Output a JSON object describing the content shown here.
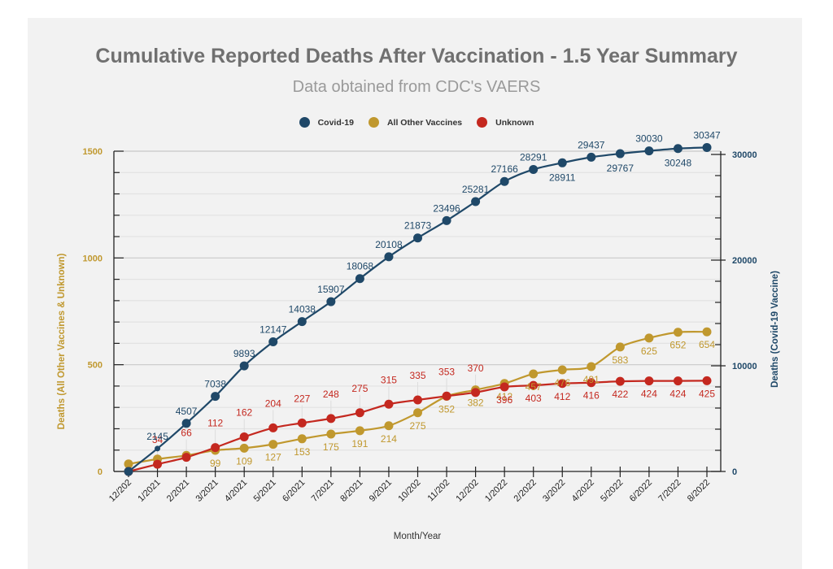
{
  "chart_data": {
    "type": "line",
    "title": "Cumulative Reported Deaths After Vaccination - 1.5 Year Summary",
    "subtitle": "Data obtained from CDC's VAERS",
    "xlabel": "Month/Year",
    "ylabel_left": "Deaths (All Other Vaccines & Unknown)",
    "ylabel_right": "Deaths (Covid-19 Vaccine)",
    "legend_position": "top-center",
    "grid": true,
    "categories": [
      "12/202",
      "1/2021",
      "2/2021",
      "3/2021",
      "4/2021",
      "5/2021",
      "6/2021",
      "7/2021",
      "8/2021",
      "9/2021",
      "10/202",
      "11/202",
      "12/202",
      "1/2022",
      "2/2022",
      "3/2022",
      "4/2022",
      "5/2022",
      "6/2022",
      "7/2022",
      "8/2022"
    ],
    "y_left": {
      "range": [
        0,
        1500
      ],
      "ticks": [
        0,
        500,
        1000,
        1500
      ],
      "minor_step": 100
    },
    "y_right": {
      "range": [
        0,
        30000
      ],
      "ticks": [
        0,
        10000,
        20000,
        30000
      ],
      "minor_step": 2000
    },
    "series": [
      {
        "name": "Covid-19",
        "color": "#1f4868",
        "axis": "right",
        "values": [
          0,
          2145,
          4507,
          7038,
          9893,
          12147,
          14038,
          15907,
          18068,
          20108,
          21873,
          23496,
          25281,
          27166,
          28291,
          28911,
          29437,
          29767,
          30030,
          30248,
          30347
        ],
        "labels": [
          "",
          "2145",
          "4507",
          "7038",
          "9893",
          "12147",
          "14038",
          "15907",
          "18068",
          "20108",
          "21873",
          "23496",
          "25281",
          "27166",
          "28291",
          "28911",
          "29437",
          "29767",
          "30030",
          "30248",
          "30347"
        ]
      },
      {
        "name": "All Other Vaccines",
        "color": "#c0982e",
        "axis": "left",
        "values": [
          35,
          58,
          75,
          99,
          109,
          127,
          153,
          175,
          191,
          214,
          275,
          352,
          382,
          412,
          457,
          476,
          491,
          583,
          625,
          652,
          654
        ],
        "labels": [
          "",
          "",
          "",
          "99",
          "109",
          "127",
          "153",
          "175",
          "191",
          "214",
          "275",
          "352",
          "382",
          "412",
          "457",
          "476",
          "491",
          "583",
          "625",
          "652",
          "654"
        ]
      },
      {
        "name": "Unknown",
        "color": "#c4281f",
        "axis": "left",
        "values": [
          0,
          34,
          66,
          112,
          162,
          204,
          227,
          248,
          275,
          315,
          335,
          353,
          370,
          396,
          403,
          412,
          416,
          422,
          424,
          424,
          425
        ],
        "labels": [
          "",
          "34",
          "66",
          "112",
          "162",
          "204",
          "227",
          "248",
          "275",
          "315",
          "335",
          "353",
          "370",
          "396",
          "403",
          "412",
          "416",
          "422",
          "424",
          "424",
          "425"
        ]
      }
    ]
  },
  "colors": {
    "panel_bg": "#f2f2f2",
    "left_axis": "#c0982e",
    "right_axis": "#1f4868",
    "title": "#707070",
    "subtitle": "#9a9a9a"
  }
}
